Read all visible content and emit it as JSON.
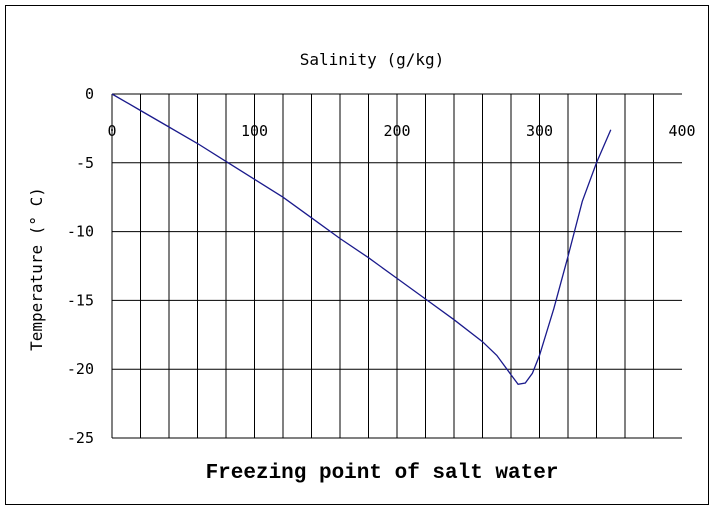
{
  "chart_data": {
    "type": "line",
    "title": "Freezing point of salt water",
    "xlabel": "Salinity (g/kg)",
    "ylabel": "Temperature (° C)",
    "x_axis_position": "top",
    "xlim": [
      0,
      400
    ],
    "ylim": [
      -25,
      0
    ],
    "xticks": [
      "0",
      "100",
      "200",
      "300",
      "400"
    ],
    "yticks": [
      "0",
      "-5",
      "-10",
      "-15",
      "-20",
      "-25"
    ],
    "grid": true,
    "legend": "none",
    "line_color": "#1a1a8c",
    "series": [
      {
        "x": [
          0,
          20,
          40,
          60,
          80,
          100,
          120,
          140,
          160,
          180,
          200,
          220,
          240,
          260,
          270,
          280,
          285,
          290,
          295,
          300,
          310,
          320,
          330,
          340,
          350
        ],
        "y": [
          0,
          -1.2,
          -2.4,
          -3.6,
          -4.9,
          -6.2,
          -7.5,
          -9.0,
          -10.5,
          -11.9,
          -13.4,
          -14.9,
          -16.4,
          -18.0,
          -19.0,
          -20.4,
          -21.1,
          -21.0,
          -20.3,
          -19.0,
          -15.6,
          -11.8,
          -7.8,
          -5.0,
          -2.6
        ]
      }
    ]
  }
}
